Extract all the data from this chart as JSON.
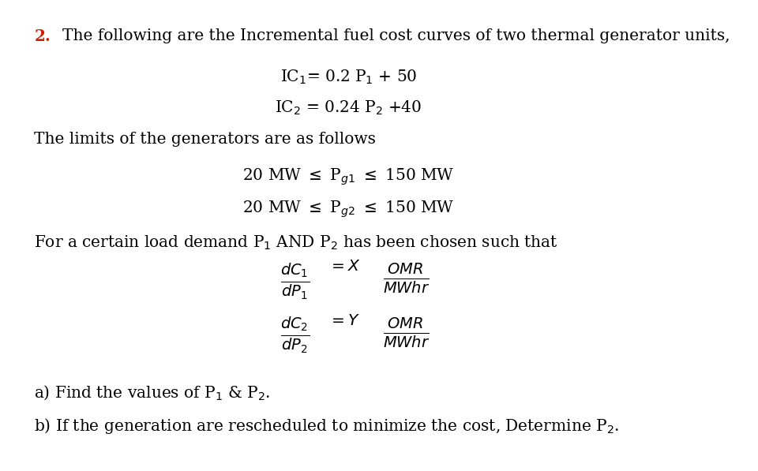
{
  "bg_color": "#ffffff",
  "text_color": "#000000",
  "number_color": "#cc2200",
  "figsize": [
    9.6,
    5.97
  ],
  "dpi": 100,
  "line1": "The following are the Incremental fuel cost curves of two thermal generator units,",
  "limits_line": "The limits of the generators are as follows",
  "demand_line": "For a certain load demand P$_1$ AND P$_2$ has been chosen such that",
  "part_a": "a) Find the values of P$_1$ & P$_2$.",
  "part_b": "b) If the generation are rescheduled to minimize the cost, Determine P$_2$."
}
